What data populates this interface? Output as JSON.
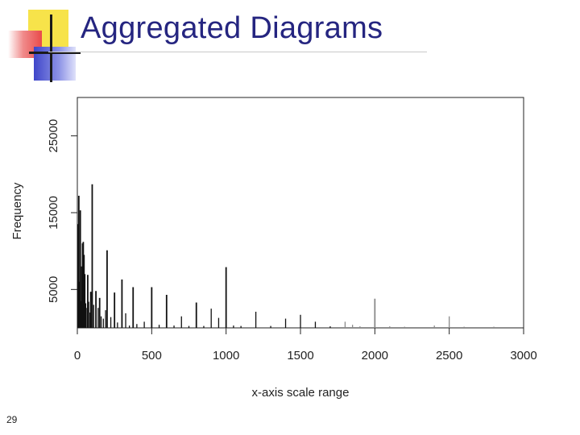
{
  "slide": {
    "title": "Aggregated Diagrams",
    "page_number": "29"
  },
  "chart_data": {
    "type": "bar",
    "title": "",
    "xlabel": "x-axis scale range",
    "ylabel": "Frequency",
    "xlim": [
      0,
      3000
    ],
    "ylim": [
      0,
      30000
    ],
    "x_ticks": [
      0,
      500,
      1000,
      1500,
      2000,
      2500,
      3000
    ],
    "y_ticks": [
      5000,
      15000,
      25000
    ],
    "series": [
      {
        "color": "#111111",
        "points": [
          {
            "x": 5,
            "y": 13500
          },
          {
            "x": 10,
            "y": 17200
          },
          {
            "x": 15,
            "y": 6000
          },
          {
            "x": 20,
            "y": 15300
          },
          {
            "x": 25,
            "y": 3500
          },
          {
            "x": 30,
            "y": 8000
          },
          {
            "x": 35,
            "y": 11000
          },
          {
            "x": 40,
            "y": 11200
          },
          {
            "x": 45,
            "y": 9500
          },
          {
            "x": 50,
            "y": 7000
          },
          {
            "x": 55,
            "y": 3200
          },
          {
            "x": 60,
            "y": 2600
          },
          {
            "x": 70,
            "y": 6900
          },
          {
            "x": 75,
            "y": 3400
          },
          {
            "x": 85,
            "y": 2000
          },
          {
            "x": 90,
            "y": 4700
          },
          {
            "x": 100,
            "y": 18700
          },
          {
            "x": 110,
            "y": 3000
          },
          {
            "x": 125,
            "y": 4800
          },
          {
            "x": 140,
            "y": 2600
          },
          {
            "x": 150,
            "y": 3900
          },
          {
            "x": 160,
            "y": 1500
          },
          {
            "x": 175,
            "y": 1200
          },
          {
            "x": 190,
            "y": 2300
          },
          {
            "x": 200,
            "y": 10100
          },
          {
            "x": 225,
            "y": 1400
          },
          {
            "x": 250,
            "y": 4600
          },
          {
            "x": 270,
            "y": 700
          },
          {
            "x": 300,
            "y": 6300
          },
          {
            "x": 325,
            "y": 1900
          },
          {
            "x": 350,
            "y": 300
          },
          {
            "x": 375,
            "y": 5300
          },
          {
            "x": 400,
            "y": 500
          },
          {
            "x": 450,
            "y": 800
          },
          {
            "x": 500,
            "y": 5300
          },
          {
            "x": 550,
            "y": 400
          },
          {
            "x": 600,
            "y": 4300
          },
          {
            "x": 650,
            "y": 300
          },
          {
            "x": 700,
            "y": 1500
          },
          {
            "x": 750,
            "y": 250
          },
          {
            "x": 800,
            "y": 3300
          },
          {
            "x": 850,
            "y": 250
          },
          {
            "x": 900,
            "y": 2500
          },
          {
            "x": 950,
            "y": 1300
          },
          {
            "x": 1000,
            "y": 7900
          },
          {
            "x": 1050,
            "y": 300
          },
          {
            "x": 1100,
            "y": 250
          },
          {
            "x": 1200,
            "y": 2100
          },
          {
            "x": 1300,
            "y": 250
          },
          {
            "x": 1400,
            "y": 1200
          },
          {
            "x": 1500,
            "y": 1700
          },
          {
            "x": 1600,
            "y": 800
          },
          {
            "x": 1700,
            "y": 200
          },
          {
            "x": 1800,
            "y": 800
          },
          {
            "x": 1850,
            "y": 400
          },
          {
            "x": 1900,
            "y": 200
          },
          {
            "x": 2000,
            "y": 3800
          },
          {
            "x": 2100,
            "y": 200
          },
          {
            "x": 2200,
            "y": 150
          },
          {
            "x": 2400,
            "y": 300
          },
          {
            "x": 2500,
            "y": 1500
          },
          {
            "x": 2600,
            "y": 150
          },
          {
            "x": 2800,
            "y": 150
          }
        ]
      }
    ]
  }
}
